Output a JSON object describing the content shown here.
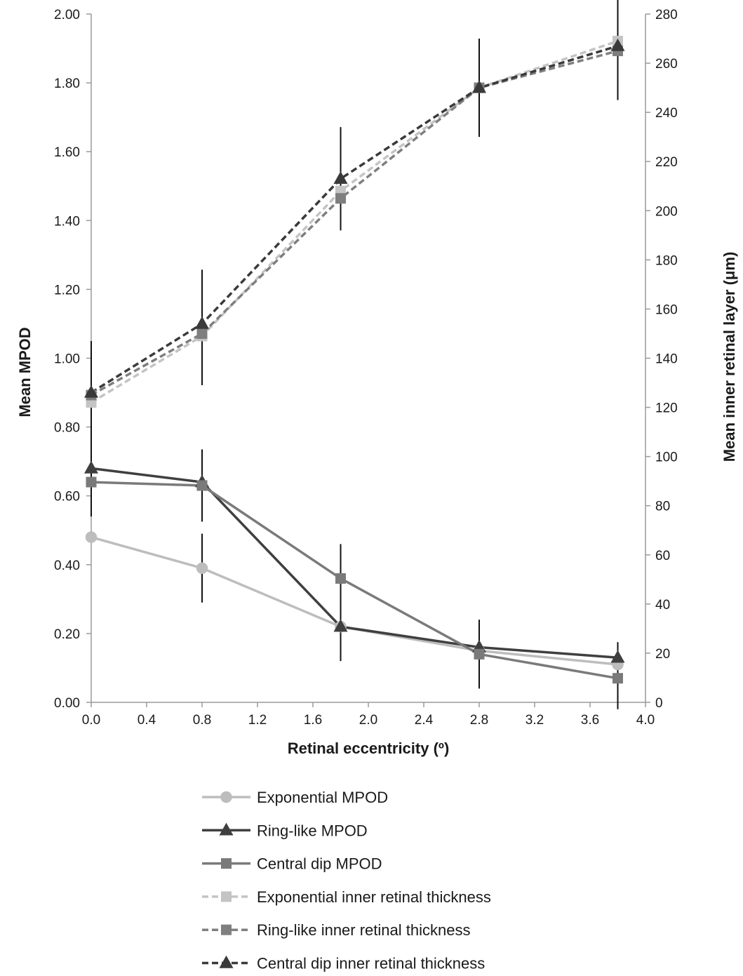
{
  "chart_data": {
    "type": "line",
    "xlabel": "Retinal eccentricity (º)",
    "ylabel_left": "Mean MPOD",
    "ylabel_right": "Mean inner retinal layer (μm)",
    "xlim": [
      0,
      4
    ],
    "ylim_left": [
      0,
      2
    ],
    "ylim_right": [
      0,
      280
    ],
    "x_ticks": [
      "0.0",
      "0.4",
      "0.8",
      "1.2",
      "1.6",
      "2.0",
      "2.4",
      "2.8",
      "3.2",
      "3.6",
      "4.0"
    ],
    "y_left_ticks": [
      "0.00",
      "0.20",
      "0.40",
      "0.60",
      "0.80",
      "1.00",
      "1.20",
      "1.40",
      "1.60",
      "1.80",
      "2.00"
    ],
    "y_right_ticks": [
      "0",
      "20",
      "40",
      "60",
      "80",
      "100",
      "120",
      "140",
      "160",
      "180",
      "200",
      "220",
      "240",
      "260",
      "280"
    ],
    "grid": false,
    "legend_position": "bottom",
    "x": [
      0.0,
      0.8,
      1.8,
      2.8,
      3.8
    ],
    "series": [
      {
        "name": "Exponential MPOD",
        "axis": "left",
        "marker": "circle",
        "dash": "solid",
        "color": "#bdbdbd",
        "values": [
          0.48,
          0.39,
          0.22,
          0.15,
          0.11
        ],
        "error": [
          null,
          0.1,
          0.1,
          null,
          null
        ]
      },
      {
        "name": "Ring-like MPOD",
        "axis": "left",
        "marker": "triangle",
        "dash": "solid",
        "color": "#3f3f3f",
        "values": [
          0.68,
          0.64,
          0.22,
          0.16,
          0.13
        ],
        "error": [
          0.085,
          0.09,
          null,
          0.08,
          0.045
        ]
      },
      {
        "name": "Central dip MPOD",
        "axis": "left",
        "marker": "square",
        "dash": "solid",
        "color": "#7a7a7a",
        "values": [
          0.64,
          0.63,
          0.36,
          0.14,
          0.07
        ],
        "error": [
          0.1,
          0.105,
          0.1,
          0.1,
          0.09
        ]
      },
      {
        "name": "Exponential inner retinal thickness",
        "axis": "right",
        "marker": "square",
        "dash": "dashed",
        "color": "#c4c4c4",
        "values": [
          122,
          149,
          208,
          250,
          269
        ],
        "error": [
          null,
          null,
          null,
          null,
          null
        ]
      },
      {
        "name": "Ring-like inner retinal thickness",
        "axis": "right",
        "marker": "square",
        "dash": "dashed",
        "color": "#7f7f7f",
        "values": [
          125,
          150,
          205,
          250,
          265
        ],
        "error": [
          null,
          21,
          12,
          null,
          19
        ]
      },
      {
        "name": "Central dip inner retinal thickness",
        "axis": "right",
        "marker": "triangle",
        "dash": "dashed",
        "color": "#3a3a3a",
        "values": [
          126,
          154,
          213,
          250,
          267
        ],
        "error": [
          21,
          22,
          21,
          20,
          22
        ]
      }
    ]
  }
}
